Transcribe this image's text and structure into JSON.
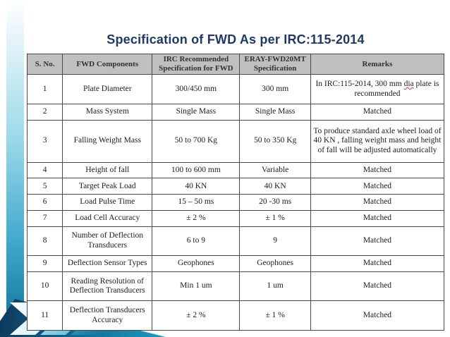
{
  "slide": {
    "title": "Specification of FWD As per IRC:115-2014"
  },
  "table": {
    "headers": [
      "S. No.",
      "FWD Components",
      "IRC Recommended Specification for FWD",
      "ERAY-FWD20MT Specification",
      "Remarks"
    ],
    "rows": [
      {
        "cells": [
          "1",
          "Plate Diameter",
          "300/450 mm",
          "300 mm",
          [
            {
              "t": "In IRC:115-2014, 300 mm "
            },
            {
              "t": "dia",
              "u": true
            },
            {
              "t": " plate is recommended"
            }
          ]
        ]
      },
      {
        "cells": [
          "2",
          "Mass System",
          "Single Mass",
          "Single Mass",
          "Matched"
        ]
      },
      {
        "cells": [
          "3",
          "Falling Weight Mass",
          "50 to 700 Kg",
          "50 to 350 Kg",
          "To produce standard axle wheel load of 40 KN , falling weight mass and height of fall will be adjusted automatically"
        ]
      },
      {
        "cells": [
          "4",
          "Height of fall",
          "100 to 600 mm",
          "Variable",
          "Matched"
        ]
      },
      {
        "cells": [
          "5",
          "Target Peak Load",
          "40 KN",
          "40 KN",
          "Matched"
        ]
      },
      {
        "cells": [
          "6",
          "Load Pulse Time",
          "15 – 50 ms",
          "20 -30 ms",
          "Matched"
        ]
      },
      {
        "cells": [
          "7",
          "Load Cell Accuracy",
          "± 2 %",
          "± 1 %",
          "Matched"
        ]
      },
      {
        "cells": [
          "8",
          "Number of Deflection Transducers",
          "6 to 9",
          "9",
          "Matched"
        ]
      },
      {
        "cells": [
          "9",
          "Deflection Sensor Types",
          "Geophones",
          "Geophones",
          "Matched"
        ]
      },
      {
        "cells": [
          "10",
          "Reading Resolution of Deflection Transducers",
          "Min 1 um",
          "1 um",
          "Matched"
        ]
      },
      {
        "cells": [
          "11",
          "Deflection Transducers Accuracy",
          "± 2 %",
          "± 1 %",
          "Matched"
        ]
      }
    ]
  },
  "decor": {
    "title_color": "#1f3864",
    "header_bg": "#bfbfbf",
    "accent_teal": "#1b9ac4",
    "accent_dark": "#0d3a5c",
    "spellcheck_underline": "#d03a2a"
  }
}
